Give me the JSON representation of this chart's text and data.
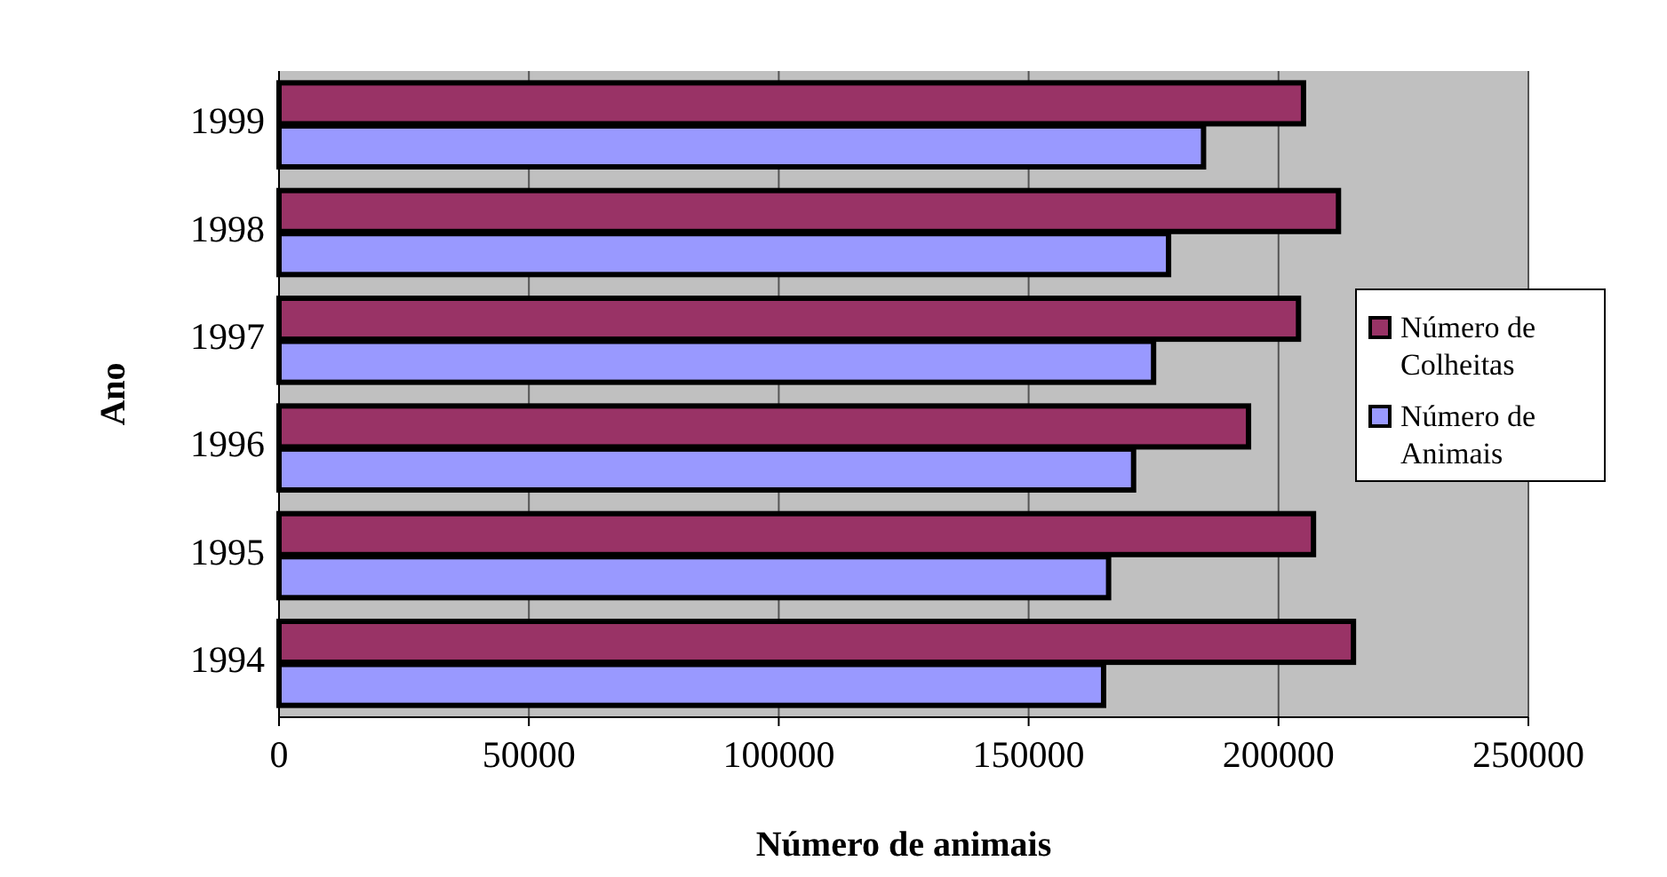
{
  "chart_data": {
    "type": "bar",
    "orientation": "horizontal",
    "xlabel": "Número de animais",
    "ylabel": "Ano",
    "categories": [
      "1999",
      "1998",
      "1997",
      "1996",
      "1995",
      "1994"
    ],
    "series": [
      {
        "name": "Número de Colheitas",
        "color": "#993366",
        "values": [
          205000,
          212000,
          204000,
          194000,
          207000,
          215000
        ]
      },
      {
        "name": "Número de Animais",
        "color": "#9999ff",
        "values": [
          185000,
          178000,
          175000,
          171000,
          166000,
          165000
        ]
      }
    ],
    "xlim": [
      0,
      250000
    ],
    "xticks": [
      0,
      50000,
      100000,
      150000,
      200000,
      250000
    ],
    "grid": "x",
    "legend": "right"
  }
}
